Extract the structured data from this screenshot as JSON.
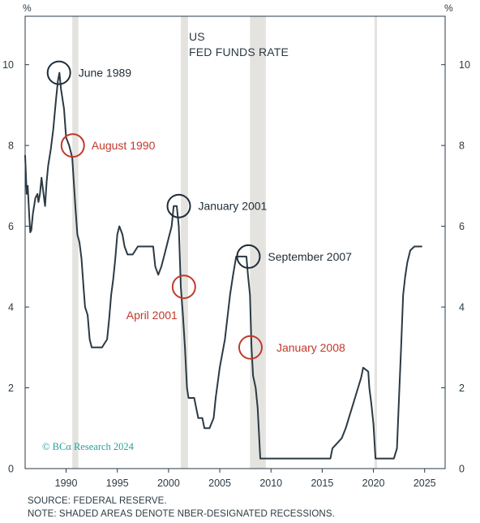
{
  "colors": {
    "line": "#2b3a44",
    "recession_shade": "#e4e3e0",
    "peak_marker": "#1f2d38",
    "cut_marker": "#c0392b",
    "watermark": "#27a39a"
  },
  "chart_data": {
    "type": "line",
    "title": "US\nFED FUNDS RATE",
    "title_lines": [
      "US",
      "FED FUNDS RATE"
    ],
    "y_unit_left": "%",
    "y_unit_right": "%",
    "xlim": [
      1986.0,
      2027.0
    ],
    "ylim": [
      0,
      11.2
    ],
    "x_ticks": [
      1990,
      1995,
      2000,
      2005,
      2010,
      2015,
      2020,
      2025
    ],
    "y_ticks": [
      0,
      2,
      4,
      6,
      8,
      10
    ],
    "grid": false,
    "recessions": [
      [
        1990.6,
        1991.2
      ],
      [
        2001.2,
        2001.9
      ],
      [
        2007.95,
        2009.5
      ],
      [
        2020.1,
        2020.35
      ]
    ],
    "series": [
      {
        "x": [
          1986.0,
          1986.15,
          1986.25,
          1986.4,
          1986.5,
          1986.6,
          1986.75,
          1987.0,
          1987.2,
          1987.3,
          1987.45,
          1987.6,
          1987.8,
          1987.95,
          1988.1,
          1988.25,
          1988.5,
          1988.75,
          1989.0,
          1989.2,
          1989.35,
          1989.5,
          1989.8,
          1990.0,
          1990.3,
          1990.6,
          1990.9,
          1991.1,
          1991.3,
          1991.5,
          1991.7,
          1991.85,
          1992.1,
          1992.3,
          1992.5,
          1992.7,
          1993.0,
          1993.5,
          1994.0,
          1994.2,
          1994.4,
          1994.6,
          1994.8,
          1995.0,
          1995.2,
          1995.5,
          1995.7,
          1996.0,
          1996.5,
          1997.0,
          1997.3,
          1997.6,
          1998.0,
          1998.5,
          1998.7,
          1999.0,
          1999.3,
          1999.5,
          1999.8,
          2000.0,
          2000.3,
          2000.5,
          2000.8,
          2001.0,
          2001.2,
          2001.4,
          2001.6,
          2001.8,
          2001.95,
          2002.5,
          2002.9,
          2003.3,
          2003.5,
          2004.0,
          2004.4,
          2004.6,
          2005.0,
          2005.5,
          2006.0,
          2006.3,
          2006.6,
          2007.0,
          2007.6,
          2007.75,
          2007.95,
          2008.1,
          2008.25,
          2008.5,
          2008.7,
          2008.95,
          2009.0,
          2010.0,
          2012.0,
          2014.0,
          2015.8,
          2016.0,
          2016.9,
          2017.3,
          2017.6,
          2017.9,
          2018.2,
          2018.5,
          2018.8,
          2019.0,
          2019.5,
          2019.6,
          2019.8,
          2020.0,
          2020.2,
          2022.0,
          2022.3,
          2022.5,
          2022.7,
          2022.9,
          2023.1,
          2023.3,
          2023.6,
          2024.0,
          2024.7
        ],
        "y": [
          7.75,
          6.8,
          7.0,
          6.25,
          5.85,
          5.9,
          6.3,
          6.7,
          6.8,
          6.6,
          6.8,
          7.2,
          6.8,
          6.5,
          7.1,
          7.5,
          7.9,
          8.4,
          9.1,
          9.6,
          9.8,
          9.4,
          8.9,
          8.2,
          8.0,
          7.7,
          6.5,
          5.8,
          5.6,
          5.2,
          4.5,
          4.0,
          3.8,
          3.2,
          3.0,
          3.0,
          3.0,
          3.0,
          3.2,
          3.7,
          4.3,
          4.7,
          5.2,
          5.8,
          6.0,
          5.8,
          5.5,
          5.3,
          5.3,
          5.5,
          5.5,
          5.5,
          5.5,
          5.5,
          5.0,
          4.8,
          5.0,
          5.2,
          5.5,
          5.7,
          6.0,
          6.5,
          6.5,
          6.0,
          4.5,
          3.8,
          3.0,
          2.0,
          1.75,
          1.75,
          1.25,
          1.25,
          1.0,
          1.0,
          1.25,
          1.75,
          2.5,
          3.2,
          4.3,
          4.8,
          5.25,
          5.25,
          5.25,
          4.8,
          4.3,
          3.0,
          2.3,
          2.0,
          1.5,
          0.25,
          0.25,
          0.25,
          0.25,
          0.25,
          0.25,
          0.5,
          0.75,
          1.0,
          1.25,
          1.5,
          1.75,
          2.0,
          2.25,
          2.5,
          2.4,
          2.0,
          1.6,
          1.1,
          0.25,
          0.25,
          0.5,
          1.75,
          3.0,
          4.3,
          4.75,
          5.1,
          5.4,
          5.5,
          5.5
        ]
      }
    ],
    "annotations": [
      {
        "label": "June 1989",
        "x": 1989.3,
        "y": 9.8,
        "kind": "peak"
      },
      {
        "label": "August 1990",
        "x": 1990.65,
        "y": 8.0,
        "kind": "cut"
      },
      {
        "label": "January 2001",
        "x": 2001.0,
        "y": 6.5,
        "kind": "peak"
      },
      {
        "label": "April 2001",
        "x": 2001.5,
        "y": 4.5,
        "kind": "cut"
      },
      {
        "label": "September 2007",
        "x": 2007.8,
        "y": 5.25,
        "kind": "peak"
      },
      {
        "label": "January 2008",
        "x": 2008.0,
        "y": 3.0,
        "kind": "cut"
      }
    ]
  },
  "watermark": "© BCα Research 2024",
  "footnotes": {
    "source": "SOURCE: FEDERAL RESERVE.",
    "note": "NOTE: SHADED AREAS DENOTE NBER-DESIGNATED RECESSIONS."
  }
}
